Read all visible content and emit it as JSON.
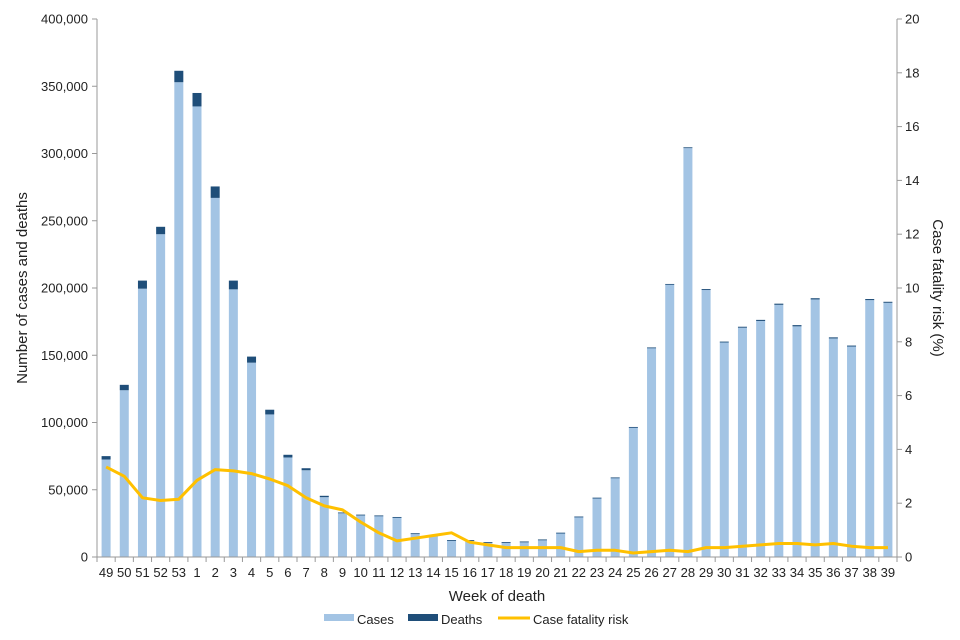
{
  "chart_data": {
    "type": "bar",
    "title": "",
    "xlabel": "Week of death",
    "ylabel": "Number of cases and deaths",
    "y2label": "Case fatality risk (%)",
    "ylim": [
      0,
      400000
    ],
    "y2lim": [
      0,
      20
    ],
    "y_ticks": [
      0,
      50000,
      100000,
      150000,
      200000,
      250000,
      300000,
      350000,
      400000
    ],
    "y_tick_labels": [
      "0",
      "50,000",
      "100,000",
      "150,000",
      "200,000",
      "250,000",
      "300,000",
      "350,000",
      "400,000"
    ],
    "y2_ticks": [
      0,
      2,
      4,
      6,
      8,
      10,
      12,
      14,
      16,
      18,
      20
    ],
    "y2_tick_labels": [
      "0",
      "2",
      "4",
      "6",
      "8",
      "10",
      "12",
      "14",
      "16",
      "18",
      "20"
    ],
    "categories": [
      "49",
      "50",
      "51",
      "52",
      "53",
      "1",
      "2",
      "3",
      "4",
      "5",
      "6",
      "7",
      "8",
      "9",
      "10",
      "11",
      "12",
      "13",
      "14",
      "15",
      "16",
      "17",
      "18",
      "19",
      "20",
      "21",
      "22",
      "23",
      "24",
      "25",
      "26",
      "27",
      "28",
      "29",
      "30",
      "31",
      "32",
      "33",
      "34",
      "35",
      "36",
      "37",
      "38",
      "39"
    ],
    "series": [
      {
        "name": "Cases",
        "kind": "bar",
        "color": "#a3c4e4",
        "values": [
          72500,
          124000,
          199500,
          240000,
          353000,
          335000,
          267000,
          199000,
          144500,
          106000,
          74000,
          64500,
          44500,
          32500,
          31000,
          30500,
          29500,
          17500,
          16000,
          12500,
          12500,
          11000,
          11000,
          11500,
          13000,
          18000,
          30000,
          44000,
          59000,
          96500,
          155500,
          202500,
          304000,
          198500,
          159500,
          170500,
          175500,
          187500,
          171500,
          191500,
          162500,
          156500,
          191000,
          189000
        ]
      },
      {
        "name": "Deaths",
        "kind": "stacked-bar",
        "color": "#1f4e79",
        "values": [
          2500,
          4000,
          6000,
          5500,
          8500,
          10000,
          8500,
          6500,
          4500,
          3500,
          2000,
          1500,
          1000,
          600,
          500,
          400,
          250,
          150,
          130,
          100,
          60,
          50,
          40,
          35,
          40,
          60,
          80,
          100,
          150,
          180,
          300,
          500,
          600,
          700,
          650,
          700,
          800,
          850,
          900,
          900,
          800,
          700,
          800,
          750
        ]
      },
      {
        "name": "Case fatality risk",
        "kind": "line",
        "axis": "right",
        "color": "#ffc000",
        "values": [
          3.35,
          3.0,
          2.2,
          2.1,
          2.15,
          2.85,
          3.25,
          3.2,
          3.1,
          2.9,
          2.65,
          2.2,
          1.9,
          1.75,
          1.3,
          0.9,
          0.6,
          0.7,
          0.8,
          0.9,
          0.55,
          0.45,
          0.35,
          0.35,
          0.35,
          0.35,
          0.2,
          0.25,
          0.25,
          0.15,
          0.2,
          0.25,
          0.2,
          0.35,
          0.35,
          0.4,
          0.45,
          0.5,
          0.5,
          0.45,
          0.5,
          0.4,
          0.35,
          0.35
        ]
      }
    ],
    "legend": [
      "Cases",
      "Deaths",
      "Case fatality risk"
    ],
    "legend_position": "bottom",
    "grid": false
  }
}
